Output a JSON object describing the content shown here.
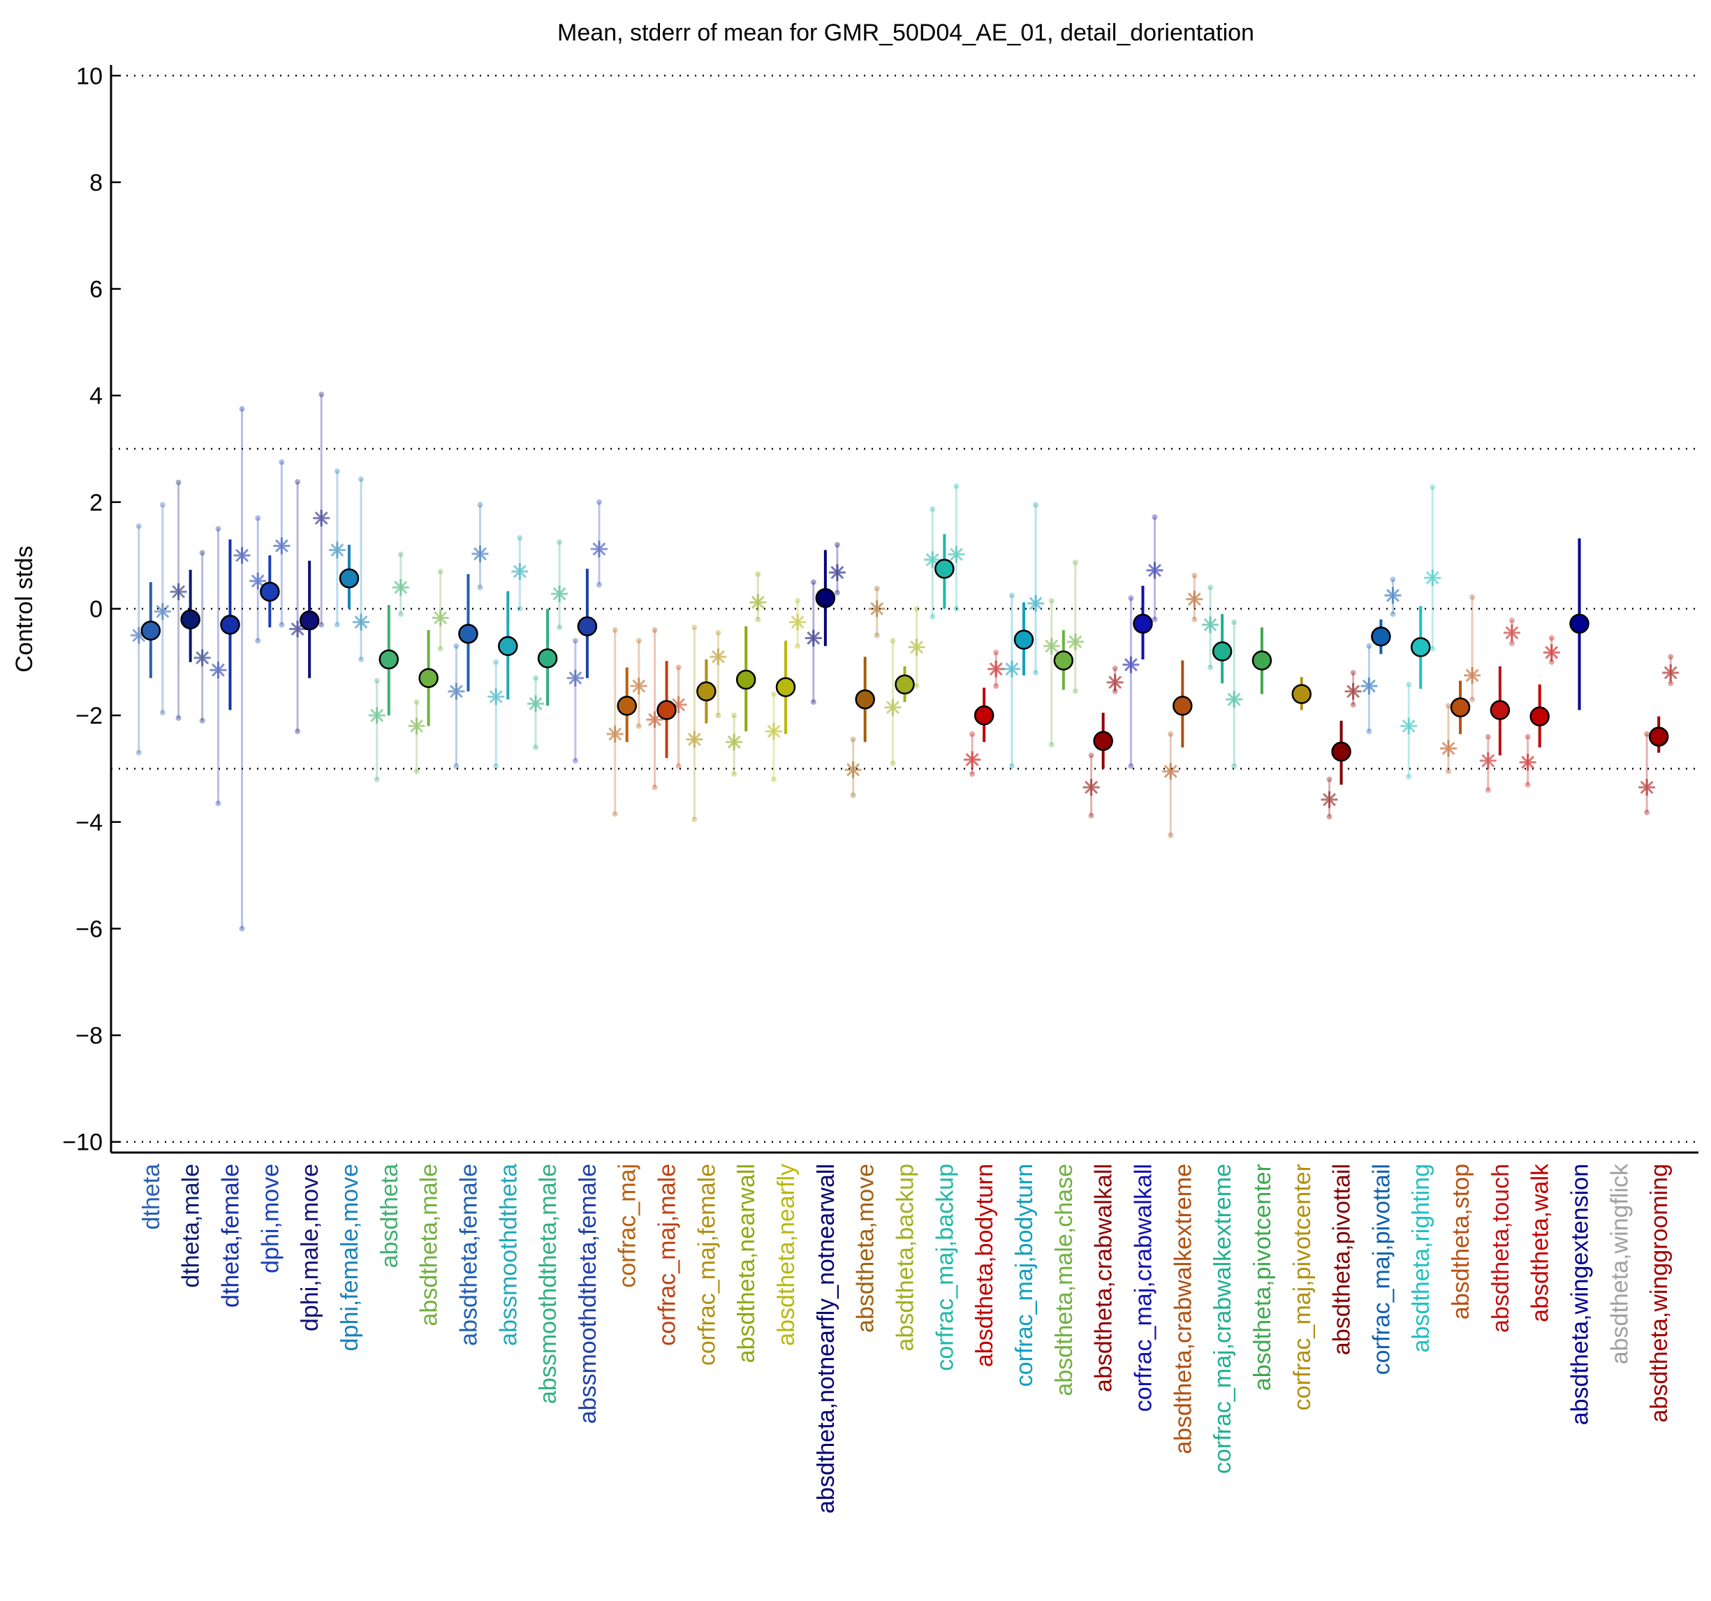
{
  "chart_data": {
    "type": "errorbar",
    "title": "Mean, stderr of mean for GMR_50D04_AE_01, detail_dorientation",
    "y_label": "Control stds",
    "categories": [
      "dtheta",
      "dtheta,male",
      "dtheta,female",
      "dphi,move",
      "dphi,male,move",
      "dphi,female,move",
      "absdtheta",
      "absdtheta,male",
      "absdtheta,female",
      "abssmoothdtheta",
      "abssmoothdtheta,male",
      "abssmoothdtheta,female",
      "corfrac_maj",
      "corfrac_maj,male",
      "corfrac_maj,female",
      "absdtheta,nearwall",
      "absdtheta,nearfly",
      "absdtheta,notnearfly_notnearwall",
      "absdtheta,move",
      "absdtheta,backup",
      "corfrac_maj,backup",
      "absdtheta,bodyturn",
      "corfrac_maj,bodyturn",
      "absdtheta,male,chase",
      "absdtheta,crabwalkall",
      "corfrac_maj,crabwalkall",
      "absdtheta,crabwalkextreme",
      "corfrac_maj,crabwalkextreme",
      "absdtheta,pivotcenter",
      "corfrac_maj,pivotcenter",
      "absdtheta,pivottail",
      "corfrac_maj,pivottail",
      "absdtheta,righting",
      "absdtheta,stop",
      "absdtheta,touch",
      "absdtheta,walk",
      "absdtheta,wingextension",
      "absdtheta,wingflick",
      "absdtheta,winggrooming"
    ],
    "colors": [
      "#2a5fb0",
      "#0a1a70",
      "#1530a8",
      "#1a3fb5",
      "#101078",
      "#1a80b8",
      "#40b070",
      "#70b040",
      "#2060b0",
      "#20a8b8",
      "#30b080",
      "#2040a8",
      "#b86010",
      "#c04010",
      "#b09010",
      "#90a810",
      "#b8b810",
      "#000070",
      "#a06010",
      "#a0b020",
      "#20b8a8",
      "#c00000",
      "#10a0c0",
      "#70b040",
      "#900000",
      "#1010b0",
      "#b05010",
      "#20b090",
      "#40a850",
      "#b09010",
      "#800000",
      "#1060b0",
      "#20c0c0",
      "#b85010",
      "#c01010",
      "#c00000",
      "#000090",
      "#a0a0a0",
      "#a00000"
    ],
    "mean": [
      -0.41,
      -0.2,
      -0.3,
      0.32,
      -0.22,
      0.57,
      -0.95,
      -1.3,
      -0.47,
      -0.7,
      -0.93,
      -0.33,
      -1.82,
      -1.9,
      -1.55,
      -1.33,
      -1.47,
      0.2,
      -1.7,
      -1.42,
      0.75,
      -2.0,
      -0.58,
      -0.97,
      -2.48,
      -0.28,
      -1.82,
      -0.8,
      -0.97,
      -1.6,
      -2.68,
      -0.52,
      -0.72,
      -1.85,
      -1.9,
      -2.02,
      -0.28,
      null,
      -2.4
    ],
    "mean_lo": [
      -1.3,
      -1.0,
      -1.9,
      -0.35,
      -1.3,
      0.0,
      -2.0,
      -2.2,
      -1.55,
      -1.7,
      -1.82,
      -1.3,
      -2.5,
      -2.8,
      -2.15,
      -2.3,
      -2.35,
      -0.7,
      -2.5,
      -1.75,
      0.0,
      -2.5,
      -1.25,
      -1.52,
      -3.0,
      -0.95,
      -2.6,
      -1.4,
      -1.6,
      -1.9,
      -3.3,
      -0.85,
      -1.5,
      -2.35,
      -2.75,
      -2.6,
      -1.9,
      null,
      -2.7
    ],
    "mean_hi": [
      0.5,
      0.73,
      1.3,
      1.0,
      0.9,
      1.2,
      0.07,
      -0.4,
      0.65,
      0.33,
      0.0,
      0.75,
      -1.1,
      -0.98,
      -0.95,
      -0.33,
      -0.6,
      1.1,
      -0.9,
      -1.08,
      1.4,
      -1.48,
      0.12,
      -0.4,
      -1.95,
      0.43,
      -0.97,
      -0.1,
      -0.35,
      -1.28,
      -2.1,
      -0.2,
      0.05,
      -1.35,
      -1.08,
      -1.42,
      1.32,
      null,
      -2.02
    ],
    "s1": [
      -0.5,
      0.32,
      -1.15,
      0.52,
      -0.38,
      1.1,
      -2.0,
      -2.2,
      -1.55,
      -1.65,
      -1.78,
      -1.3,
      -2.35,
      -2.08,
      -2.45,
      -2.5,
      -2.3,
      -0.55,
      -3.02,
      -1.85,
      0.92,
      -2.83,
      -1.13,
      -0.7,
      -3.35,
      -1.05,
      -3.05,
      -0.3,
      null,
      null,
      -3.58,
      -1.45,
      -2.2,
      -2.62,
      -2.85,
      -2.88,
      null,
      null,
      -3.35
    ],
    "s1_lo": [
      -2.7,
      -2.05,
      -3.65,
      -0.6,
      -2.3,
      -0.3,
      -3.2,
      -3.05,
      -2.95,
      -2.95,
      -2.6,
      -2.85,
      -3.85,
      -3.35,
      -3.95,
      -3.1,
      -3.2,
      -1.75,
      -3.5,
      -2.9,
      -0.15,
      -3.1,
      -2.95,
      -2.55,
      -3.88,
      -2.95,
      -4.25,
      -1.1,
      null,
      null,
      -3.9,
      -2.3,
      -3.15,
      -3.05,
      -3.4,
      -3.3,
      null,
      null,
      -3.82
    ],
    "s1_hi": [
      1.55,
      2.37,
      1.5,
      1.7,
      2.38,
      2.58,
      -1.35,
      -1.75,
      -0.7,
      -1.0,
      -1.3,
      -0.6,
      -0.4,
      -0.4,
      -0.35,
      -2.0,
      -1.6,
      0.5,
      -2.45,
      -0.6,
      1.87,
      -2.35,
      0.25,
      0.15,
      -2.75,
      0.2,
      -2.35,
      0.4,
      null,
      null,
      -3.2,
      -0.7,
      -1.42,
      -1.82,
      -2.4,
      -2.4,
      null,
      null,
      -2.35
    ],
    "s2": [
      -0.05,
      -0.92,
      1.0,
      1.18,
      1.7,
      -0.25,
      0.4,
      -0.17,
      1.03,
      0.7,
      0.28,
      1.12,
      -1.45,
      -1.8,
      -0.9,
      0.12,
      -0.25,
      0.68,
      0.0,
      -0.72,
      1.02,
      -1.13,
      0.1,
      -0.62,
      -1.38,
      0.72,
      0.18,
      -1.7,
      null,
      null,
      -1.55,
      0.25,
      0.58,
      -1.25,
      -0.45,
      -0.82,
      null,
      null,
      -1.2
    ],
    "s2_lo": [
      -1.95,
      -2.1,
      -6.0,
      -0.3,
      -0.3,
      -0.95,
      -0.1,
      -0.75,
      0.4,
      0.0,
      -0.35,
      0.45,
      -2.2,
      -2.95,
      -2.0,
      -0.2,
      -0.7,
      0.3,
      -0.5,
      -1.45,
      0.0,
      -1.45,
      -1.2,
      -1.55,
      -1.55,
      -0.2,
      -0.2,
      -2.95,
      null,
      null,
      -1.8,
      -0.1,
      -0.75,
      -1.7,
      -0.65,
      -1.0,
      null,
      null,
      -1.4
    ],
    "s2_hi": [
      1.95,
      1.05,
      3.75,
      2.75,
      4.02,
      2.43,
      1.02,
      0.7,
      1.95,
      1.33,
      1.25,
      2.0,
      -0.6,
      -1.1,
      -0.45,
      0.65,
      0.15,
      1.2,
      0.38,
      0.0,
      2.3,
      -0.82,
      1.95,
      0.87,
      -1.12,
      1.72,
      0.62,
      -0.25,
      null,
      null,
      -1.2,
      0.55,
      2.28,
      0.22,
      -0.22,
      -0.55,
      null,
      null,
      -0.9
    ],
    "ylim": [
      -10.2,
      10.2
    ],
    "yticks": [
      {
        "value": -10,
        "label": "−10"
      },
      {
        "value": -8,
        "label": "−8"
      },
      {
        "value": -6,
        "label": "−6"
      },
      {
        "value": -4,
        "label": "−4"
      },
      {
        "value": -2,
        "label": "−2"
      },
      0,
      2,
      4,
      6,
      8,
      10
    ],
    "hlines": [
      10,
      3,
      0,
      -3,
      -10
    ]
  }
}
